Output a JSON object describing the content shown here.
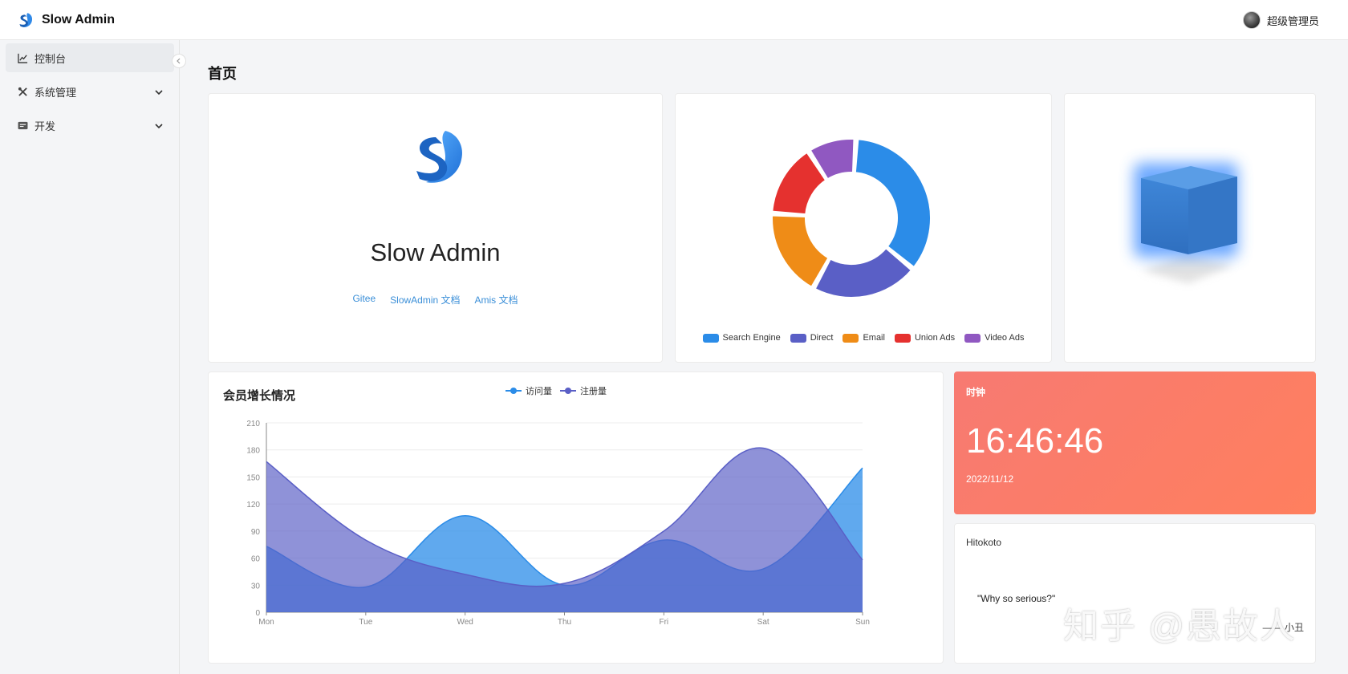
{
  "header": {
    "app_name": "Slow Admin",
    "user_name": "超级管理员"
  },
  "sidebar": {
    "items": [
      {
        "label": "控制台",
        "icon": "line-chart-icon",
        "active": true
      },
      {
        "label": "系统管理",
        "icon": "tools-icon",
        "expandable": true
      },
      {
        "label": "开发",
        "icon": "dev-icon",
        "expandable": true
      }
    ]
  },
  "page": {
    "title": "首页"
  },
  "intro": {
    "app_name": "Slow Admin",
    "links": [
      "Gitee",
      "SlowAdmin 文档",
      "Amis 文档"
    ]
  },
  "colors": {
    "brand": "#2f89e8",
    "search_engine": "#2b8ce8",
    "direct": "#5a5fc6",
    "email": "#ef8c17",
    "union_ads": "#e5312f",
    "video_ads": "#9058c1",
    "clock_gradient_start": "#f77a72",
    "clock_gradient_end": "#ff7f5e"
  },
  "pie_chart": {
    "chart_data": {
      "type": "pie",
      "donut": true,
      "labels": [
        "Search Engine",
        "Direct",
        "Email",
        "Union Ads",
        "Video Ads"
      ],
      "values": [
        35,
        22,
        18,
        15,
        10
      ],
      "legend": "bottom"
    }
  },
  "growth_chart": {
    "title": "会员增长情况",
    "chart_data": {
      "type": "area",
      "categories": [
        "Mon",
        "Tue",
        "Wed",
        "Thu",
        "Fri",
        "Sat",
        "Sun"
      ],
      "series": [
        {
          "name": "访问量",
          "values": [
            73,
            28,
            107,
            30,
            80,
            48,
            160
          ]
        },
        {
          "name": "注册量",
          "values": [
            167,
            80,
            42,
            32,
            90,
            182,
            58
          ]
        }
      ],
      "ylim": [
        0,
        210
      ],
      "yticks": [
        0,
        30,
        60,
        90,
        120,
        150,
        180,
        210
      ],
      "smooth": true,
      "grid": true,
      "legend": "top-center"
    }
  },
  "clock": {
    "label": "时钟",
    "time": "16:46:46",
    "date": "2022/11/12"
  },
  "hitokoto": {
    "title": "Hitokoto",
    "quote": "\"Why so serious?\"",
    "from": "—— 小丑"
  },
  "watermark": "知乎 @愚故人"
}
